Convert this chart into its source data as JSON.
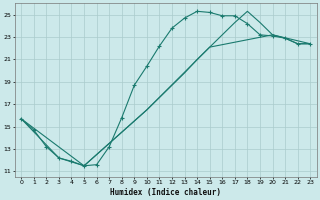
{
  "xlabel": "Humidex (Indice chaleur)",
  "xlim": [
    -0.5,
    23.5
  ],
  "ylim": [
    10.5,
    26.0
  ],
  "xticks": [
    0,
    1,
    2,
    3,
    4,
    5,
    6,
    7,
    8,
    9,
    10,
    11,
    12,
    13,
    14,
    15,
    16,
    17,
    18,
    19,
    20,
    21,
    22,
    23
  ],
  "yticks": [
    11,
    13,
    15,
    17,
    19,
    21,
    23,
    25
  ],
  "bg_color": "#cce9ea",
  "grid_color": "#aacccc",
  "line_color": "#1a7a6e",
  "line1_x": [
    0,
    1,
    2,
    3,
    4,
    5,
    6,
    7,
    8,
    9,
    10,
    11,
    12,
    13,
    14,
    15,
    16,
    17,
    18,
    19,
    20,
    21,
    22,
    23
  ],
  "line1_y": [
    15.7,
    14.7,
    13.2,
    12.2,
    11.9,
    11.5,
    11.6,
    13.2,
    15.8,
    18.7,
    20.4,
    22.2,
    23.8,
    24.7,
    25.3,
    25.2,
    24.9,
    24.9,
    24.2,
    23.2,
    23.1,
    22.9,
    22.4,
    22.4
  ],
  "line2_x": [
    0,
    3,
    5,
    10,
    11,
    12,
    13,
    14,
    15,
    16,
    17,
    18,
    19,
    20,
    21,
    22,
    23
  ],
  "line2_y": [
    15.7,
    12.2,
    11.5,
    16.5,
    17.6,
    18.7,
    19.8,
    21.0,
    22.1,
    23.2,
    24.3,
    25.3,
    24.3,
    23.2,
    22.9,
    22.4,
    22.4
  ],
  "line3_x": [
    0,
    5,
    10,
    15,
    20,
    23
  ],
  "line3_y": [
    15.7,
    11.5,
    16.5,
    22.1,
    23.2,
    22.4
  ]
}
